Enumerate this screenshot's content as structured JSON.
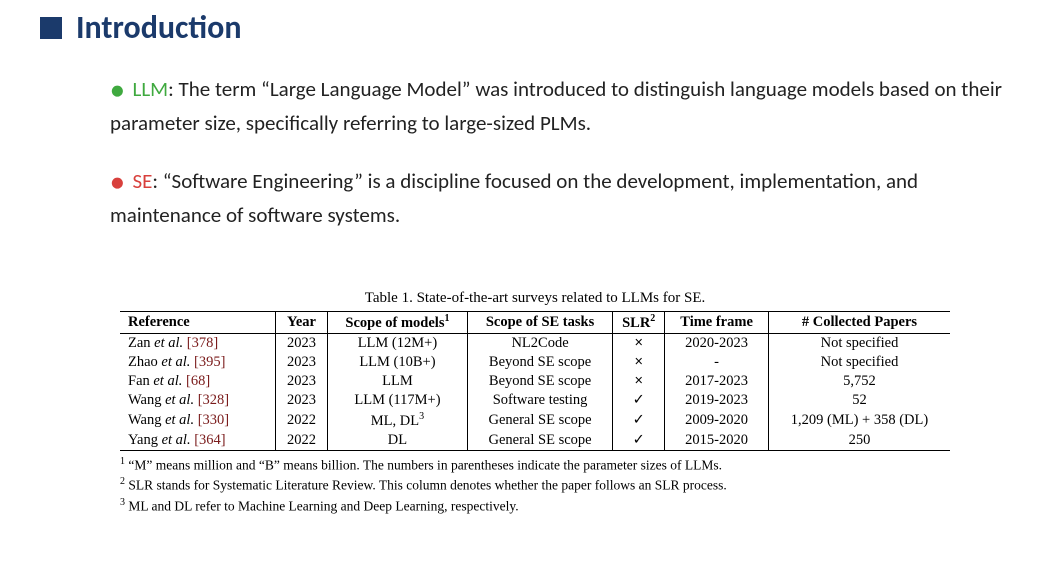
{
  "heading": "Introduction",
  "bullets": [
    {
      "marker_color": "green",
      "term": "LLM",
      "term_color": "green",
      "text": ": The term “Large Language Model” was introduced to distinguish language models based on their parameter size, specifically referring to large-sized PLMs."
    },
    {
      "marker_color": "red",
      "term": "SE",
      "term_color": "red",
      "text": ": “Software Engineering”  is a discipline focused on the development, implementation, and maintenance of software systems."
    }
  ],
  "table": {
    "caption": "Table 1. State-of-the-art surveys related to LLMs for SE.",
    "columns": [
      "Reference",
      "Year",
      "Scope of models",
      "Scope of SE tasks",
      "SLR",
      "Time frame",
      "# Collected Papers"
    ],
    "header_sup": {
      "2": "1",
      "4": "2"
    },
    "rows": [
      {
        "ref_author": "Zan ",
        "ref_etal": "et al.",
        "ref_cite": "[378]",
        "year": "2023",
        "models": "LLM (12M+)",
        "tasks": "NL2Code",
        "slr": "×",
        "tf": "2020-2023",
        "papers": "Not specified"
      },
      {
        "ref_author": "Zhao ",
        "ref_etal": "et al.",
        "ref_cite": "[395]",
        "year": "2023",
        "models": "LLM (10B+)",
        "tasks": "Beyond SE scope",
        "slr": "×",
        "tf": "-",
        "papers": "Not specified"
      },
      {
        "ref_author": "Fan ",
        "ref_etal": "et al.",
        "ref_cite": "[68]",
        "year": "2023",
        "models": "LLM",
        "tasks": "Beyond SE scope",
        "slr": "×",
        "tf": "2017-2023",
        "papers": "5,752"
      },
      {
        "ref_author": "Wang ",
        "ref_etal": "et al.",
        "ref_cite": "[328]",
        "year": "2023",
        "models": "LLM (117M+)",
        "tasks": "Software testing",
        "slr": "✓",
        "tf": "2019-2023",
        "papers": "52"
      },
      {
        "ref_author": "Wang ",
        "ref_etal": "et al.",
        "ref_cite": "[330]",
        "year": "2022",
        "models": "ML, DL",
        "models_sup": "3",
        "tasks": "General SE scope",
        "slr": "✓",
        "tf": "2009-2020",
        "papers": "1,209 (ML) + 358 (DL)"
      },
      {
        "ref_author": "Yang ",
        "ref_etal": "et al.",
        "ref_cite": "[364]",
        "year": "2022",
        "models": "DL",
        "tasks": "General SE scope",
        "slr": "✓",
        "tf": "2015-2020",
        "papers": "250"
      }
    ],
    "footnotes": [
      {
        "n": "1",
        "text": "“M” means million and “B” means billion. The numbers in parentheses indicate the parameter sizes of LLMs."
      },
      {
        "n": "2",
        "text": "SLR stands for Systematic Literature Review. This column denotes whether the paper follows an SLR process."
      },
      {
        "n": "3",
        "text": "ML and DL refer to Machine Learning and Deep Learning, respectively."
      }
    ],
    "col_widths": [
      "150px",
      "50px",
      "135px",
      "140px",
      "50px",
      "100px",
      "175px"
    ]
  }
}
